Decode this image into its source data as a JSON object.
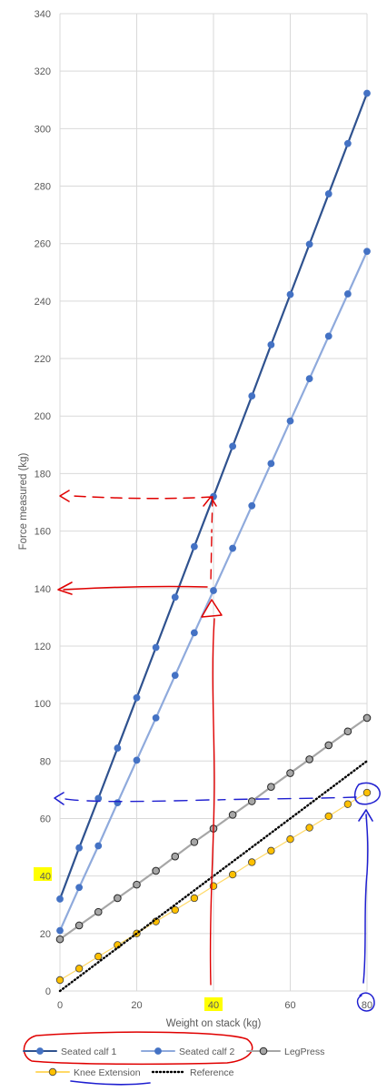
{
  "chart_data": {
    "type": "line",
    "xlabel": "Weight on stack (kg)",
    "ylabel": "Force measured (kg)",
    "xlim": [
      0,
      80
    ],
    "ylim": [
      0,
      340
    ],
    "x_ticks": [
      0,
      20,
      40,
      60,
      80
    ],
    "y_ticks": [
      0,
      20,
      40,
      60,
      80,
      100,
      120,
      140,
      160,
      180,
      200,
      220,
      240,
      260,
      280,
      300,
      320,
      340
    ],
    "grid": "vertical and horizontal",
    "legend_position": "bottom",
    "series": [
      {
        "name": "Seated calf 1",
        "color": "#2f528f",
        "marker": "filled-circle",
        "x": [
          0,
          5,
          10,
          15,
          20,
          25,
          30,
          35,
          40,
          45,
          50,
          55,
          60,
          65,
          70,
          75,
          80
        ],
        "y": [
          32,
          49.8,
          67,
          84.5,
          102,
          119.5,
          137,
          154.6,
          172,
          189.5,
          207,
          224.8,
          242.3,
          259.8,
          277.3,
          294.8,
          312.3
        ]
      },
      {
        "name": "Seated calf 2",
        "color": "#8faadc",
        "marker": "filled-circle",
        "x": [
          0,
          5,
          10,
          15,
          20,
          25,
          30,
          35,
          40,
          45,
          50,
          55,
          60,
          65,
          70,
          75,
          80
        ],
        "y": [
          21,
          36,
          50.5,
          65.5,
          80.3,
          95,
          109.8,
          124.6,
          139.3,
          154,
          168.8,
          183.5,
          198.3,
          213,
          227.8,
          242.5,
          257.3
        ]
      },
      {
        "name": "LegPress",
        "color": "#a6a6a6",
        "marker": "grey-circle",
        "x": [
          0,
          5,
          10,
          15,
          20,
          25,
          30,
          35,
          40,
          45,
          50,
          55,
          60,
          65,
          70,
          75,
          80
        ],
        "y": [
          18,
          22.8,
          27.5,
          32.3,
          37,
          41.8,
          46.8,
          51.8,
          56.5,
          61.3,
          66,
          71,
          75.8,
          80.6,
          85.5,
          90.3,
          95
        ]
      },
      {
        "name": "Knee Extension",
        "color": "#ffd966",
        "marker": "yellow-circle",
        "x": [
          0,
          5,
          10,
          15,
          20,
          25,
          30,
          35,
          40,
          45,
          50,
          55,
          60,
          65,
          70,
          75,
          80
        ],
        "y": [
          3.8,
          7.8,
          12,
          16,
          20,
          24.2,
          28.2,
          32.3,
          36.5,
          40.5,
          44.8,
          48.8,
          52.8,
          56.8,
          60.8,
          65,
          69
        ]
      },
      {
        "name": "Reference",
        "color": "#000000",
        "marker": "none",
        "style": "dotted",
        "x": [
          0,
          80
        ],
        "y": [
          0,
          80
        ]
      }
    ],
    "annotations": [
      {
        "type": "handwritten-dashed-arrow",
        "color": "#e00000",
        "note": "from (40,172) to y-axis"
      },
      {
        "type": "handwritten-arrow",
        "color": "#e00000",
        "note": "from (40,140) to y-axis"
      },
      {
        "type": "handwritten-vertical-arrow",
        "color": "#e00000",
        "note": "up from x=40"
      },
      {
        "type": "handwritten-dashed-arrow",
        "color": "#1f1fd0",
        "note": "from (80,69) to y-axis at ~67"
      },
      {
        "type": "handwritten-vertical-arrow",
        "color": "#1f1fd0",
        "note": "up from x=80"
      },
      {
        "type": "highlight",
        "color": "#ffff00",
        "note": "y tick 40 and x tick 40"
      },
      {
        "type": "circle",
        "color": "#1f1fd0",
        "note": "x tick 80 and end point (80,69)"
      },
      {
        "type": "loop",
        "color": "#e00000",
        "note": "around Seated calf legend entries"
      },
      {
        "type": "underline",
        "color": "#1f1fd0",
        "note": "under Knee Extension legend entry"
      }
    ]
  }
}
